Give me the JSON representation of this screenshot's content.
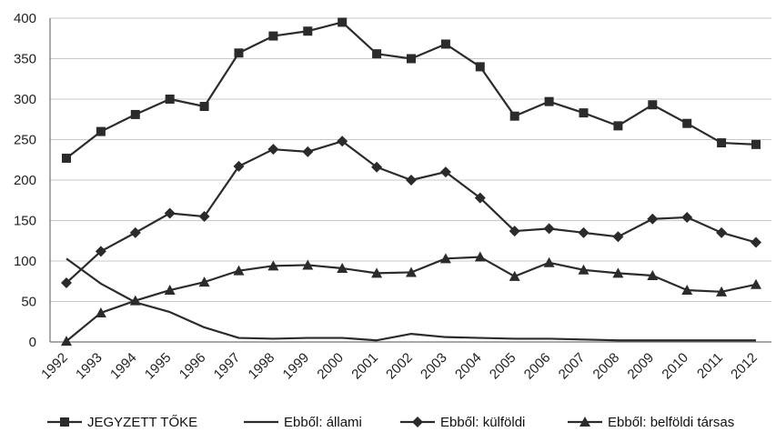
{
  "chart_data": {
    "type": "line",
    "title": "",
    "xlabel": "",
    "ylabel": "",
    "ylim": [
      0,
      400
    ],
    "yticks": [
      0,
      50,
      100,
      150,
      200,
      250,
      300,
      350,
      400
    ],
    "grid": true,
    "legend_position": "bottom",
    "categories": [
      "1992",
      "1993",
      "1994",
      "1995",
      "1996",
      "1997",
      "1998",
      "1999",
      "2000",
      "2001",
      "2002",
      "2003",
      "2004",
      "2005",
      "2006",
      "2007",
      "2008",
      "2009",
      "2010",
      "2011",
      "2012"
    ],
    "series": [
      {
        "name": "JEGYZETT TŐKE",
        "marker": "square",
        "values": [
          227,
          260,
          281,
          300,
          291,
          357,
          378,
          384,
          395,
          356,
          350,
          368,
          340,
          279,
          297,
          283,
          267,
          293,
          270,
          246,
          244
        ]
      },
      {
        "name": "Ebből: állami",
        "marker": "none",
        "values": [
          103,
          72,
          49,
          37,
          18,
          5,
          4,
          5,
          5,
          2,
          10,
          6,
          5,
          4,
          4,
          3,
          2,
          2,
          2,
          2,
          2
        ]
      },
      {
        "name": "Ebből: külföldi",
        "marker": "diamond",
        "values": [
          73,
          112,
          135,
          159,
          155,
          217,
          238,
          235,
          248,
          216,
          200,
          210,
          178,
          137,
          140,
          135,
          130,
          152,
          154,
          135,
          123
        ]
      },
      {
        "name": "Ebből: belföldi társas",
        "marker": "triangle",
        "values": [
          1,
          36,
          51,
          64,
          74,
          88,
          94,
          95,
          91,
          85,
          86,
          103,
          105,
          81,
          98,
          89,
          85,
          82,
          64,
          62,
          71
        ]
      }
    ]
  }
}
